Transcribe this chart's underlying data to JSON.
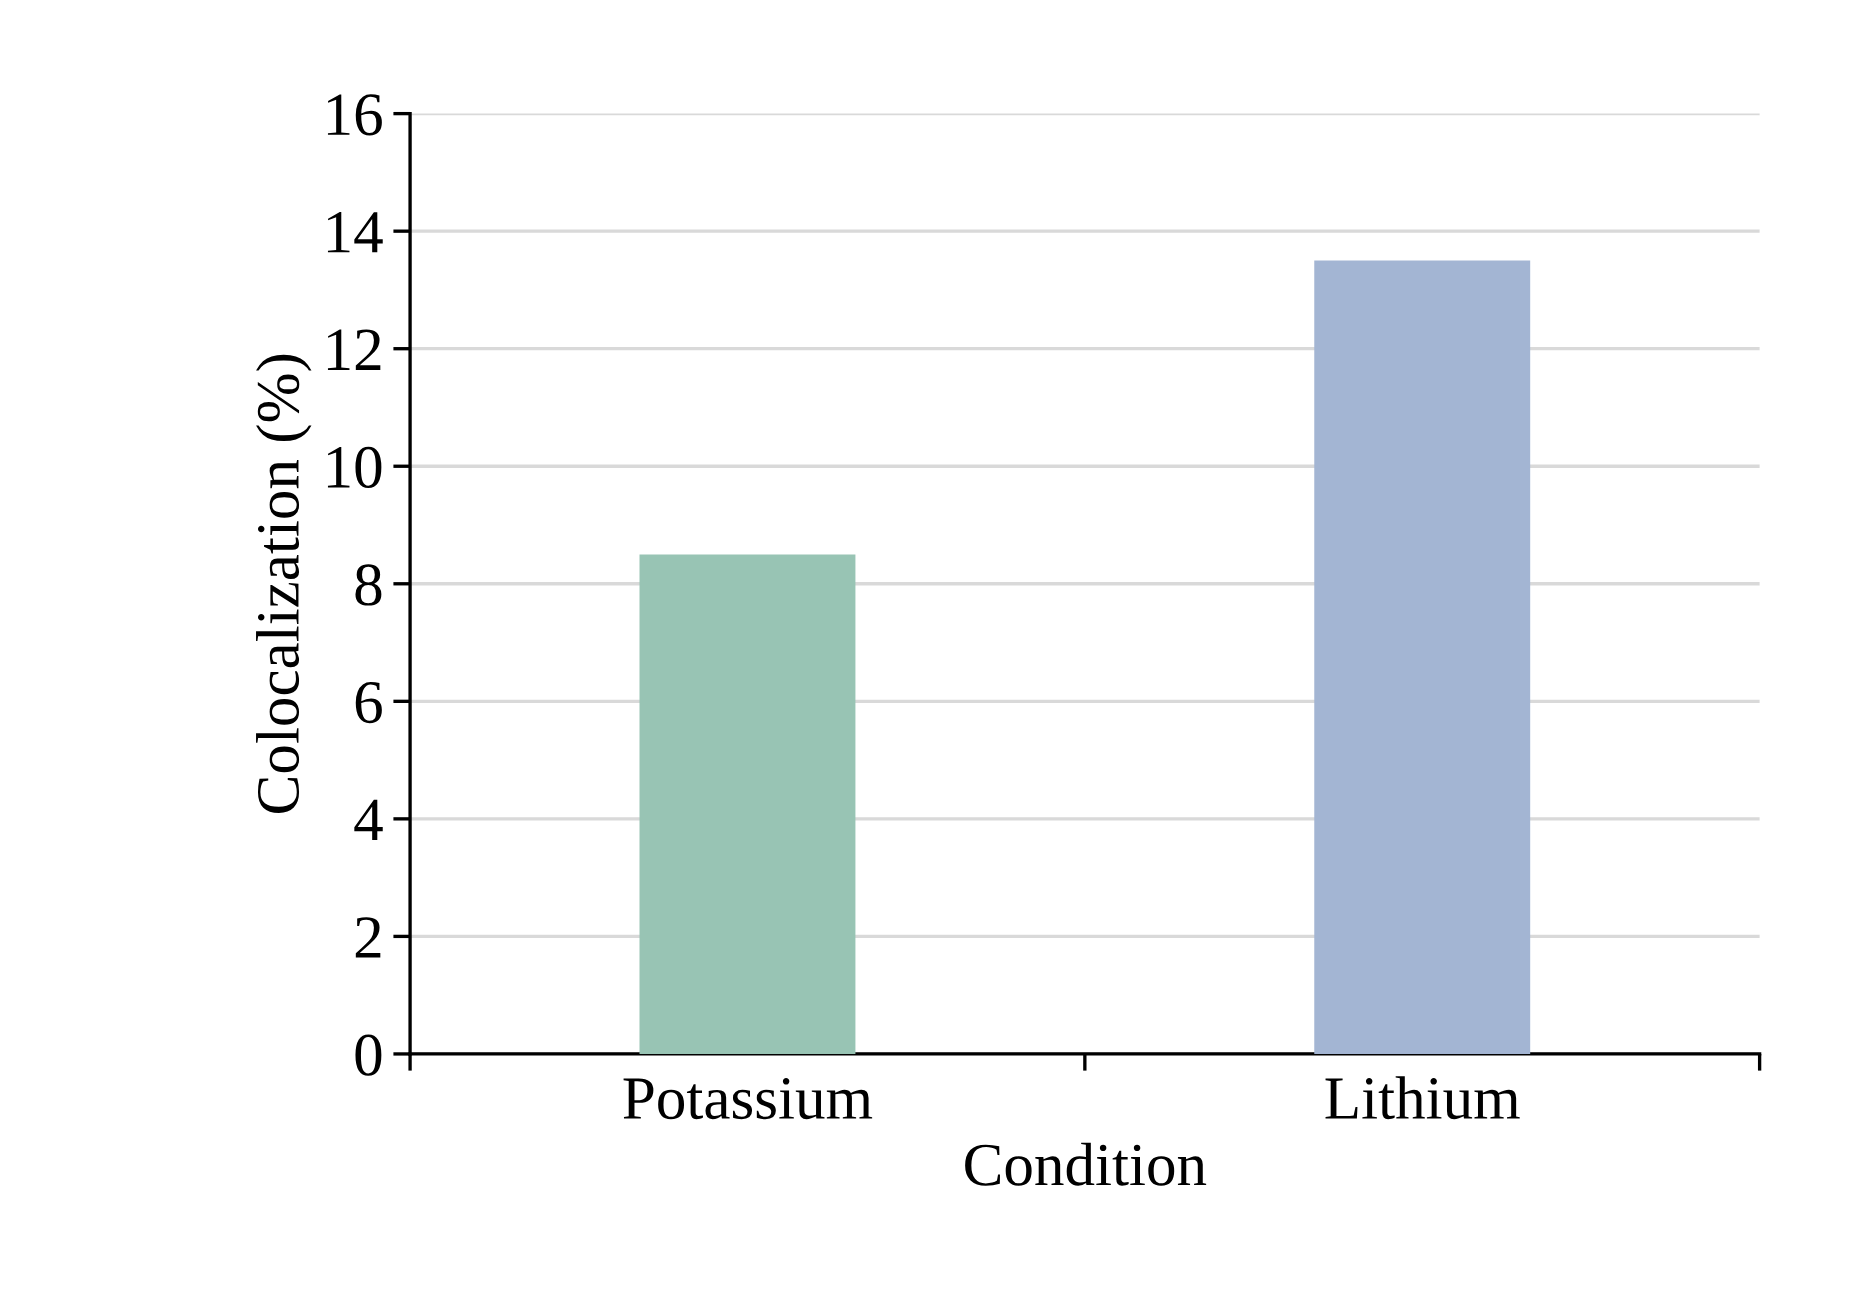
{
  "chart_data": {
    "type": "bar",
    "xlabel": "Condition",
    "ylabel": "Colocalization (%)",
    "categories": [
      "Potassium",
      "Lithium"
    ],
    "values": [
      8.5,
      13.5
    ],
    "colors": [
      "#98c4b4",
      "#a3b5d3"
    ],
    "ylim": [
      0,
      16
    ],
    "yticks": [
      0,
      2,
      4,
      6,
      8,
      10,
      12,
      14,
      16
    ],
    "grid": "y"
  }
}
